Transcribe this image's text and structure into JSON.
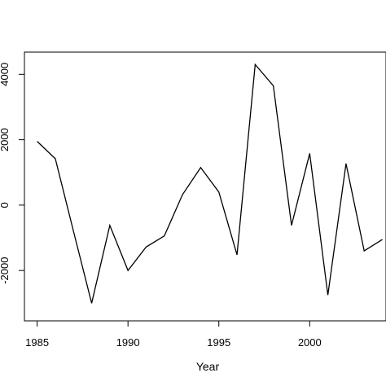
{
  "chart_data": {
    "type": "line",
    "title": "",
    "xlabel": "Year",
    "ylabel": "",
    "x": [
      1985,
      1986,
      1987,
      1988,
      1989,
      1990,
      1991,
      1992,
      1993,
      1994,
      1995,
      1996,
      1997,
      1998,
      1999,
      2000,
      2001,
      2002,
      2003,
      2004
    ],
    "series": [
      {
        "values": [
          1950,
          1420,
          -800,
          -3000,
          -620,
          -2000,
          -1280,
          -940,
          320,
          1150,
          400,
          -1520,
          4300,
          3650,
          -620,
          1580,
          -2750,
          1270,
          -1400,
          -1050
        ],
        "color": "#000000"
      }
    ],
    "xticks": [
      1985,
      1990,
      1995,
      2000
    ],
    "yticks": [
      -2000,
      0,
      2000,
      4000
    ],
    "xlim": [
      1984.3,
      2004.2
    ],
    "ylim": [
      -3540,
      4680
    ],
    "grid": false,
    "legend": "none"
  }
}
